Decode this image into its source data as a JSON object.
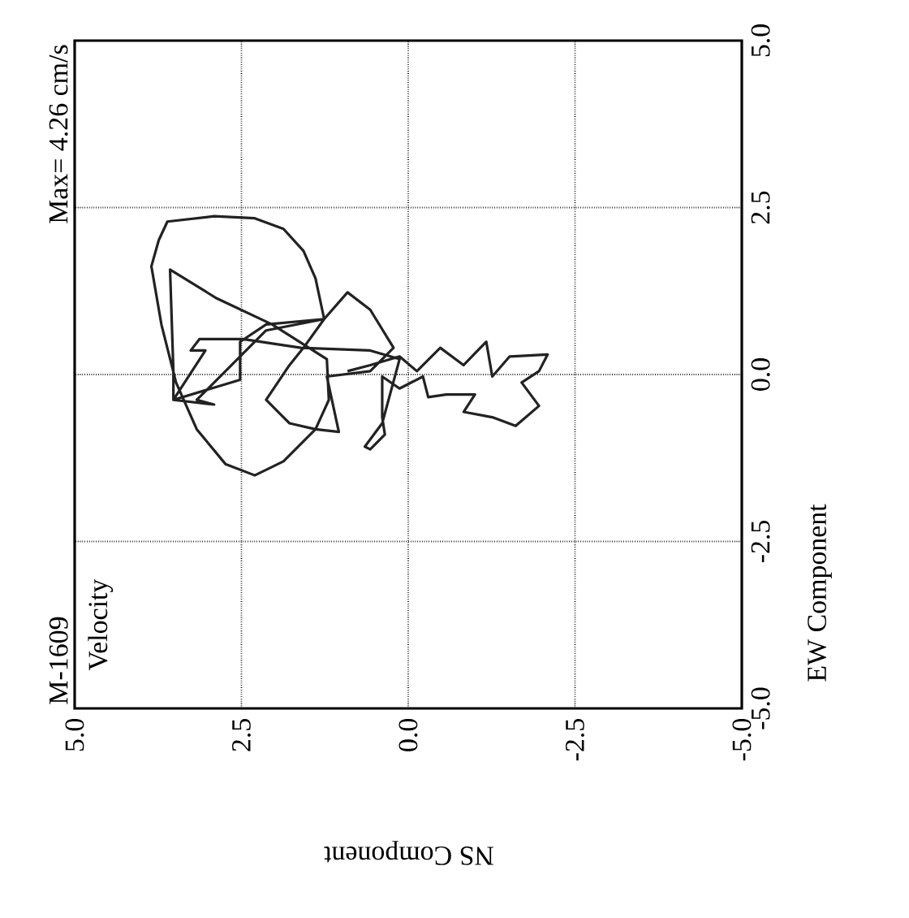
{
  "chart_data": {
    "type": "line",
    "title": "M-1609",
    "subtitle": "Velocity",
    "annotations": [
      "Max=  4.26 cm/s"
    ],
    "xlabel": "NS Component",
    "ylabel": "EW Component",
    "xlim": [
      5,
      -5
    ],
    "ylim": [
      -5,
      5
    ],
    "xticks": [
      {
        "value": 5,
        "label": "5.0"
      },
      {
        "value": 2.5,
        "label": "2.5"
      },
      {
        "value": 0,
        "label": "0.0"
      },
      {
        "value": -2.5,
        "label": "-2.5"
      },
      {
        "value": -5,
        "label": "-5.0"
      }
    ],
    "yticks": [
      {
        "value": -5,
        "label": "-5.0"
      },
      {
        "value": -2.5,
        "label": "-2.5"
      },
      {
        "value": 0,
        "label": "0.0"
      },
      {
        "value": 2.5,
        "label": "2.5"
      },
      {
        "value": 5,
        "label": "5.0"
      }
    ],
    "grid": true,
    "series": [
      {
        "color": "#222222",
        "x": [
          0.91,
          0.57,
          0.13,
          -0.13,
          -0.48,
          -0.83,
          -1.17,
          -1.26,
          -1.52,
          -2.09,
          -1.96,
          -1.7,
          -1.96,
          -1.61,
          -1.26,
          -0.83,
          -1.0,
          -0.57,
          -0.3,
          -0.22,
          0.13,
          0.39,
          0.39,
          0.35,
          0.57,
          0.65,
          0.39,
          0.13,
          0.57,
          1.61,
          2.48,
          3.13,
          3.26,
          3.04,
          3.52,
          2.91,
          3.17,
          2.65,
          2.13,
          1.26,
          0.91,
          0.57,
          0.22,
          0.57,
          1.22,
          1.04,
          1.39,
          1.78,
          2.13,
          1.78,
          1.57,
          1.26,
          1.39,
          1.57,
          1.87,
          2.3,
          2.91,
          3.61,
          3.74,
          3.85,
          3.7,
          3.48,
          3.17,
          2.74,
          2.3,
          1.87,
          1.39,
          1.19,
          1.22,
          2.04,
          2.87,
          3.57,
          3.52,
          3.52,
          2.52,
          2.52,
          2.13,
          1.26
        ],
        "values": [
          0.05,
          0.14,
          0.27,
          0.05,
          0.4,
          0.14,
          0.49,
          -0.03,
          0.27,
          0.3,
          0.05,
          -0.12,
          -0.47,
          -0.77,
          -0.64,
          -0.56,
          -0.3,
          -0.3,
          -0.34,
          -0.03,
          -0.21,
          -0.03,
          -0.64,
          -0.9,
          -1.12,
          -1.08,
          -0.73,
          0.23,
          0.36,
          0.4,
          0.53,
          0.53,
          0.36,
          0.36,
          -0.38,
          -0.45,
          -0.38,
          0.14,
          0.66,
          0.83,
          1.23,
          0.97,
          0.4,
          0.05,
          -0.03,
          -0.86,
          -0.82,
          -0.73,
          -0.38,
          0.14,
          0.4,
          0.83,
          1.44,
          1.85,
          2.18,
          2.34,
          2.37,
          2.29,
          2.01,
          1.62,
          0.75,
          -0.12,
          -0.82,
          -1.34,
          -1.51,
          -1.3,
          -0.82,
          -0.38,
          0.23,
          0.75,
          1.14,
          1.57,
          0.05,
          -0.38,
          -0.08,
          0.49,
          0.75,
          0.83
        ]
      }
    ]
  }
}
